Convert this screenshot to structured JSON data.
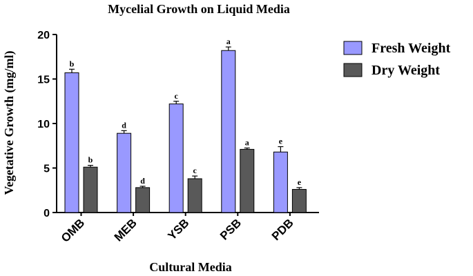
{
  "chart_data": {
    "type": "bar",
    "title": "Mycelial Growth on Liquid Media",
    "xlabel": "Cultural Media",
    "ylabel": "Vegetative Growth (mg/ml)",
    "ylim": [
      0,
      20
    ],
    "yticks": [
      "0",
      "5",
      "10",
      "15",
      "20"
    ],
    "categories": [
      "OMB",
      "MEB",
      "YSB",
      "PSB",
      "PDB"
    ],
    "legend_position": "top-right",
    "grid": false,
    "series": [
      {
        "name": "Fresh Weight",
        "color": "#9999ff",
        "values": [
          15.7,
          8.9,
          12.2,
          18.2,
          6.8
        ],
        "errors": [
          0.4,
          0.3,
          0.3,
          0.4,
          0.6
        ],
        "labels": [
          "b",
          "d",
          "c",
          "a",
          "e"
        ]
      },
      {
        "name": "Dry Weight",
        "color": "#595959",
        "values": [
          5.1,
          2.8,
          3.8,
          7.1,
          2.6
        ],
        "errors": [
          0.2,
          0.15,
          0.3,
          0.15,
          0.2
        ],
        "labels": [
          "b",
          "d",
          "c",
          "a",
          "e"
        ]
      }
    ]
  }
}
